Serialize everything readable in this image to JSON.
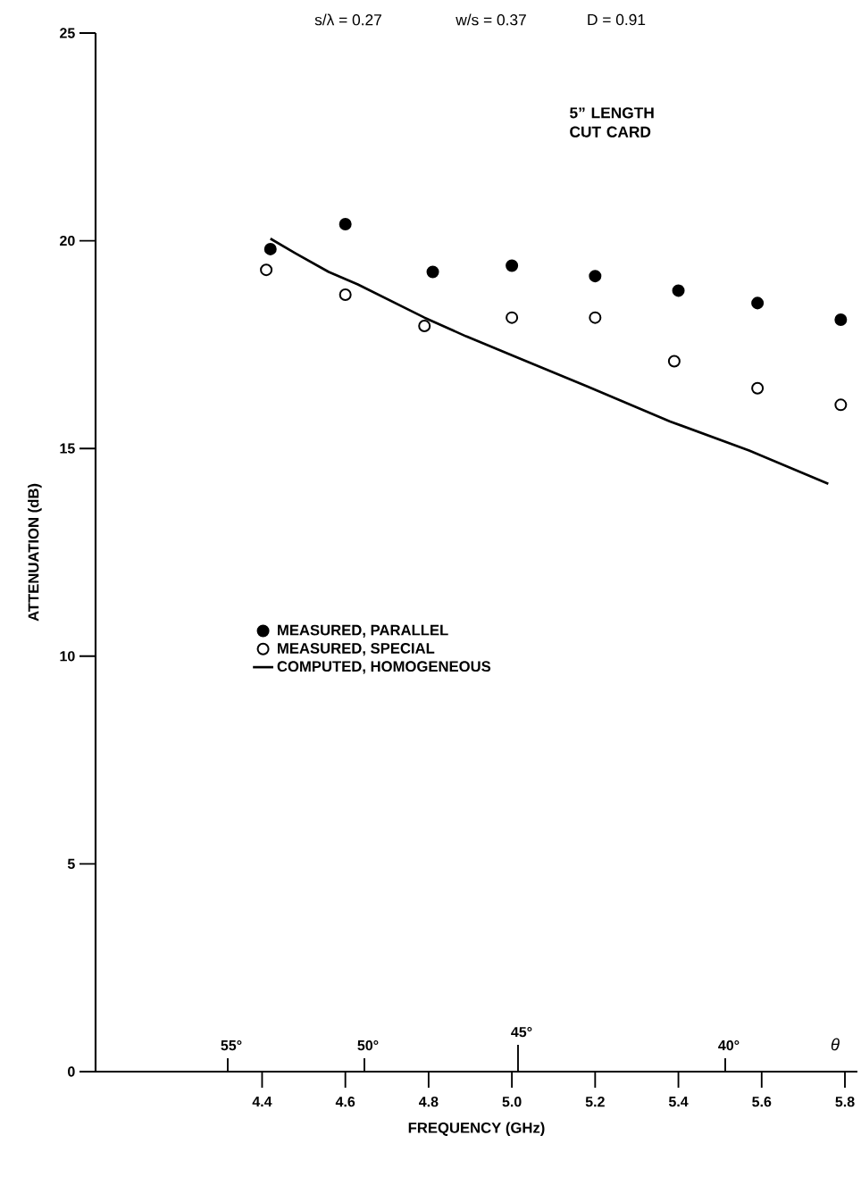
{
  "chart_data": {
    "type": "scatter",
    "xlabel": "FREQUENCY (GHz)",
    "ylabel": "ATTENUATION (dB)",
    "annotations": [
      "s/λ = 0.27",
      "w/s = 0.37",
      "D = 0.91",
      "5” LENGTH CUT CARD",
      "55°",
      "50°",
      "45°",
      "40°",
      "θ"
    ],
    "xlim": [
      4.0,
      5.83
    ],
    "xticks": [
      4.4,
      4.6,
      4.8,
      {
        "value": 5.0,
        "label": "5.0"
      },
      5.2,
      5.4,
      5.6,
      5.8
    ],
    "ylim": [
      0,
      25
    ],
    "yticks": [
      0,
      5,
      10,
      15,
      20,
      25
    ],
    "legend": "center left",
    "grid": false,
    "series": [
      {
        "name": "MEASURED, PARALLEL",
        "color": "#000000",
        "marker": "circle",
        "x": [
          4.42,
          4.6,
          4.81,
          5.0,
          5.2,
          5.4,
          5.59,
          5.79
        ],
        "values": [
          19.8,
          20.4,
          19.25,
          19.4,
          19.15,
          18.8,
          18.5,
          18.1
        ]
      },
      {
        "name": "MEASURED, SPECIAL",
        "color": "#000000",
        "marker": "circle",
        "x": [
          4.41,
          4.6,
          4.79,
          5.0,
          5.2,
          5.39,
          5.59,
          5.79
        ],
        "values": [
          19.3,
          18.7,
          17.95,
          18.15,
          18.15,
          17.1,
          16.45,
          16.05
        ]
      },
      {
        "name": "COMPUTED, HOMOGENEOUS",
        "color": "#000000",
        "type": "line",
        "marker": "none",
        "line_style": "solid",
        "x": [
          4.42,
          4.48,
          4.56,
          4.63,
          4.79,
          4.89,
          5.01,
          5.18,
          5.38,
          5.57,
          5.76
        ],
        "values": [
          20.05,
          19.7,
          19.25,
          18.95,
          18.15,
          17.7,
          17.2,
          16.5,
          15.65,
          14.95,
          14.15
        ]
      }
    ]
  }
}
